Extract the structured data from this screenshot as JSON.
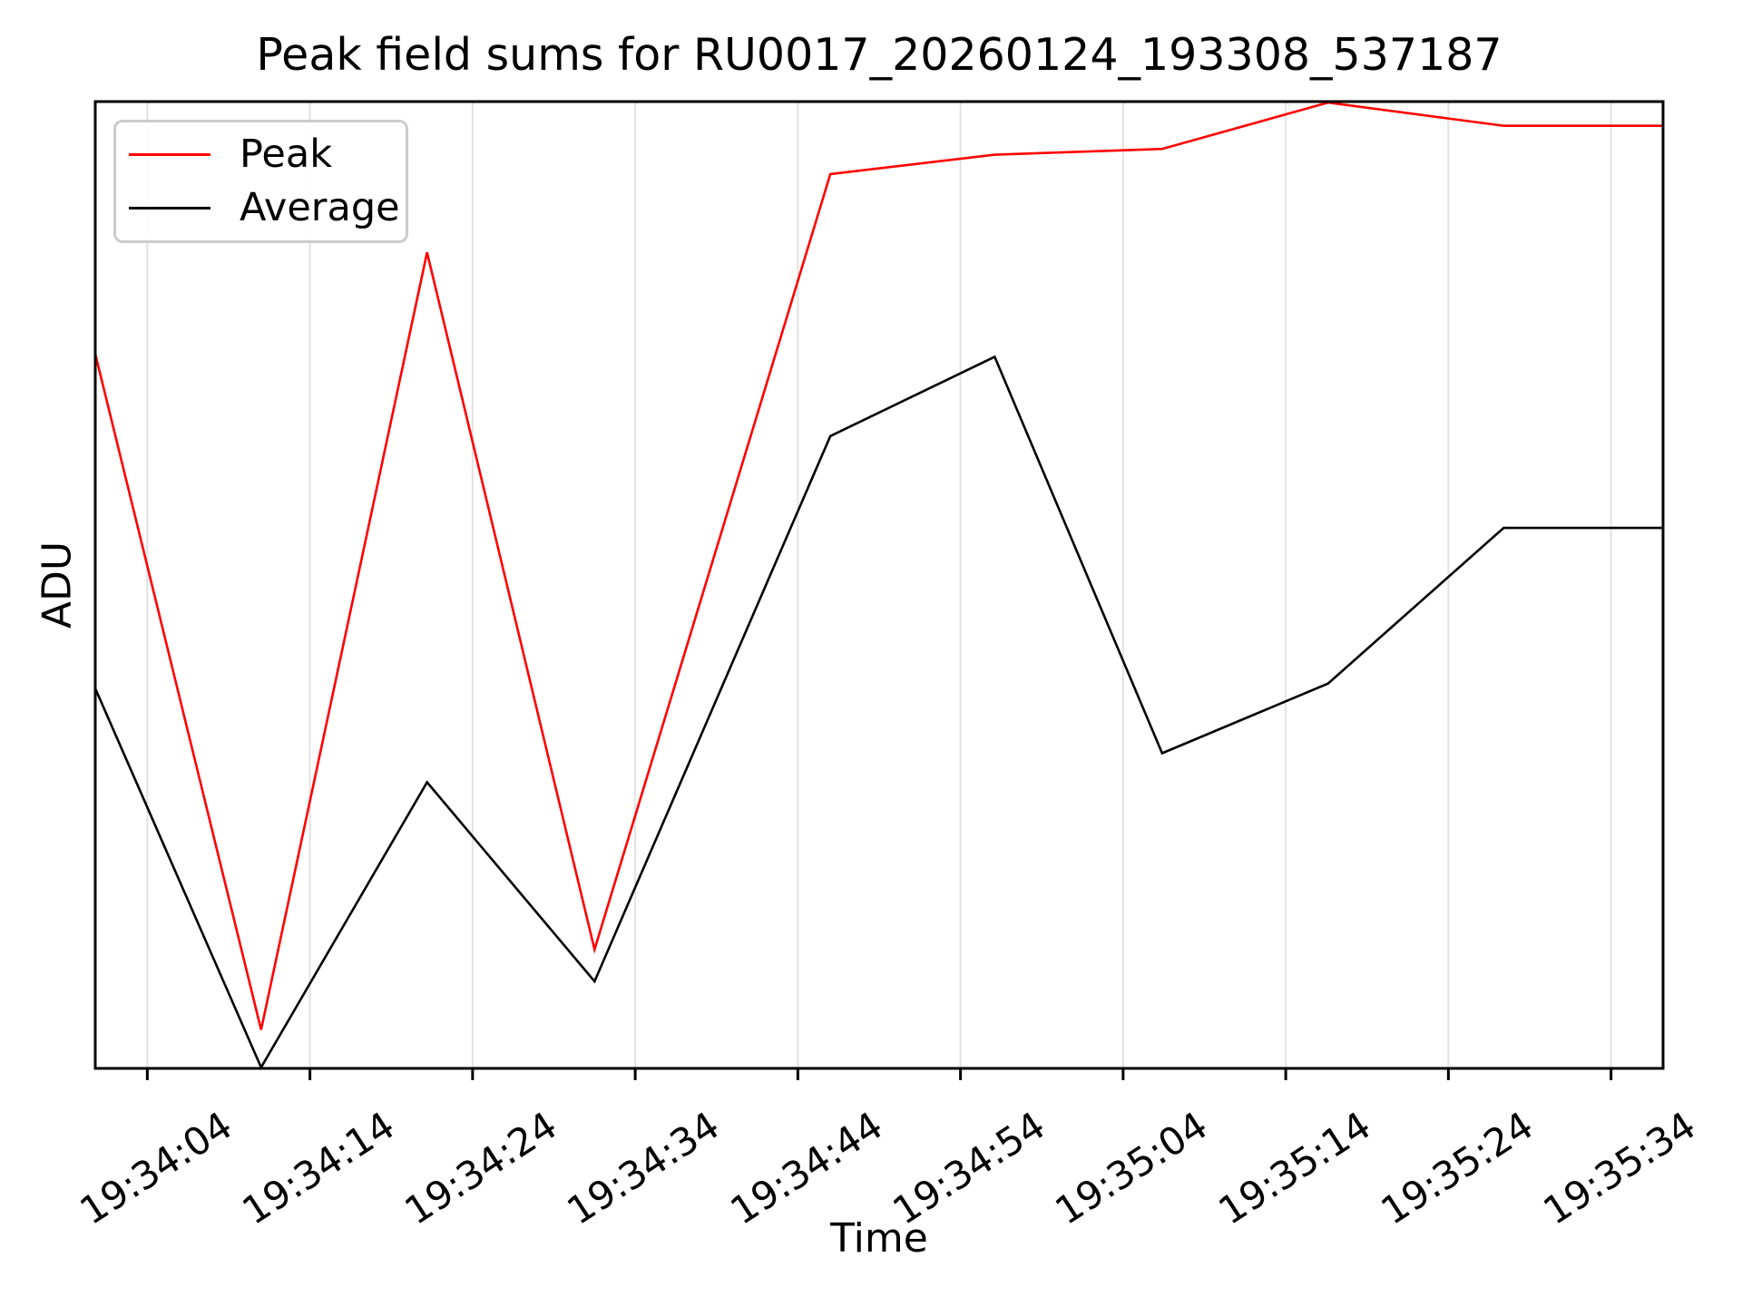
{
  "chart_data": {
    "type": "line",
    "title": "Peak field sums for RU0017_20260124_193308_537187",
    "xlabel": "Time",
    "ylabel": "ADU",
    "x_tick_labels": [
      "19:34:04",
      "19:34:14",
      "19:34:24",
      "19:34:34",
      "19:34:44",
      "19:34:54",
      "19:35:04",
      "19:35:14",
      "19:35:24",
      "19:35:34"
    ],
    "x_tick_seconds": [
      4,
      14,
      24,
      34,
      44,
      54,
      64,
      74,
      84,
      94
    ],
    "x_range_seconds": [
      0.8,
      97.2
    ],
    "y_tick_labels": [],
    "y_axis_numeric_labels_visible": false,
    "y_unit": "normalized 0-1 of axis height (no numeric y ticks shown)",
    "grid": "vertical-only",
    "estimated_sample_times": [
      "19:34:01",
      "19:34:11",
      "19:34:21",
      "19:34:32",
      "19:34:46",
      "19:34:56",
      "19:35:06",
      "19:35:17",
      "19:35:27",
      "19:35:37"
    ],
    "x_seconds": [
      0.8,
      11,
      21.2,
      31.5,
      46,
      56.1,
      66.4,
      76.6,
      87.4,
      97.2
    ],
    "series": [
      {
        "name": "Peak",
        "color": "#ff0000",
        "values_normalized": [
          0.739,
          0.04,
          0.844,
          0.123,
          0.925,
          0.945,
          0.951,
          0.999,
          0.975,
          0.975
        ]
      },
      {
        "name": "Average",
        "color": "#000000",
        "values_normalized": [
          0.393,
          0.001,
          0.296,
          0.09,
          0.654,
          0.736,
          0.326,
          0.398,
          0.559,
          0.559
        ]
      }
    ],
    "legend": {
      "position": "upper-left",
      "entries": [
        {
          "label": "Peak",
          "color": "#ff0000"
        },
        {
          "label": "Average",
          "color": "#000000"
        }
      ]
    }
  },
  "colors": {
    "background": "#ffffff",
    "axes_frame": "#000000",
    "gridline": "#e2e2e2",
    "peak_line": "#ff0000",
    "average_line": "#000000",
    "legend_border": "#cccccc"
  }
}
